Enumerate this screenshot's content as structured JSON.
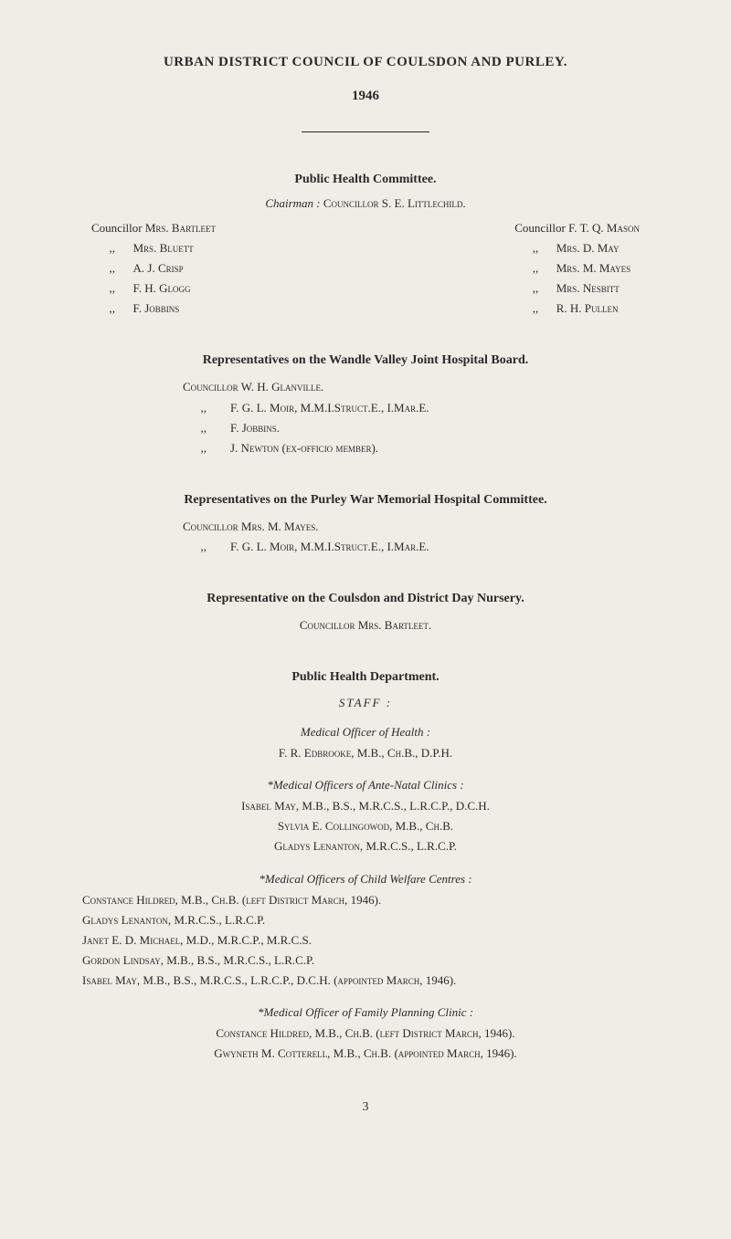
{
  "title": "URBAN DISTRICT COUNCIL OF COULSDON AND PURLEY.",
  "year": "1946",
  "committee": {
    "heading": "Public Health Committee.",
    "chairman_prefix": "Chairman :",
    "chairman_name": "Councillor S. E. Littlechild.",
    "left": [
      {
        "prefix": "Councillor",
        "name": "Mrs. Bartleet"
      },
      {
        "prefix": ",,",
        "name": "Mrs. Bluett"
      },
      {
        "prefix": ",,",
        "name": "A. J. Crisp"
      },
      {
        "prefix": ",,",
        "name": "F. H. Glogg"
      },
      {
        "prefix": ",,",
        "name": "F. Jobbins"
      }
    ],
    "right": [
      {
        "prefix": "Councillor",
        "name": "F. T. Q. Mason"
      },
      {
        "prefix": ",,",
        "name": "Mrs. D. May"
      },
      {
        "prefix": ",,",
        "name": "Mrs. M. Mayes"
      },
      {
        "prefix": ",,",
        "name": "Mrs. Nesbitt"
      },
      {
        "prefix": ",,",
        "name": "R. H. Pullen"
      }
    ]
  },
  "wandle": {
    "heading": "Representatives on the Wandle Valley Joint Hospital Board.",
    "lines": [
      "Councillor W. H. Glanville.",
      "      ,,        F. G. L. Moir, M.M.I.Struct.E., I.Mar.E.",
      "      ,,        F. Jobbins.",
      "      ,,        J. Newton (ex-officio member)."
    ]
  },
  "purley": {
    "heading": "Representatives on the Purley War Memorial Hospital Committee.",
    "lines": [
      "Councillor Mrs. M. Mayes.",
      "      ,,        F. G. L. Moir, M.M.I.Struct.E., I.Mar.E."
    ]
  },
  "nursery": {
    "heading": "Representative on the Coulsdon and District Day Nursery.",
    "line": "Councillor Mrs. Bartleet."
  },
  "dept": {
    "heading": "Public Health Department.",
    "staff_label": "STAFF :",
    "moh": {
      "label": "Medical Officer of Health :",
      "name": "F. R. Edbrooke, M.B., Ch.B., D.P.H."
    },
    "antenatal": {
      "label": "*Medical Officers of Ante-Natal Clinics :",
      "lines": [
        "Isabel May, M.B., B.S., M.R.C.S., L.R.C.P., D.C.H.",
        "Sylvia E. Collingowod, M.B., Ch.B.",
        "Gladys Lenanton, M.R.C.S., L.R.C.P."
      ]
    },
    "welfare": {
      "label": "*Medical Officers of Child Welfare Centres :",
      "lines": [
        "Constance Hildred, M.B., Ch.B. (left District March, 1946).",
        "Gladys Lenanton, M.R.C.S., L.R.C.P.",
        "Janet E. D. Michael, M.D., M.R.C.P., M.R.C.S.",
        "Gordon Lindsay, M.B., B.S., M.R.C.S., L.R.C.P.",
        "Isabel May, M.B., B.S., M.R.C.S., L.R.C.P., D.C.H. (appointed March, 1946)."
      ]
    },
    "family": {
      "label": "*Medical Officer of Family Planning Clinic :",
      "lines": [
        "Constance Hildred, M.B., Ch.B. (left District March, 1946).",
        "Gwyneth M. Cotterell, M.B., Ch.B. (appointed March, 1946)."
      ]
    }
  },
  "page_number": "3"
}
